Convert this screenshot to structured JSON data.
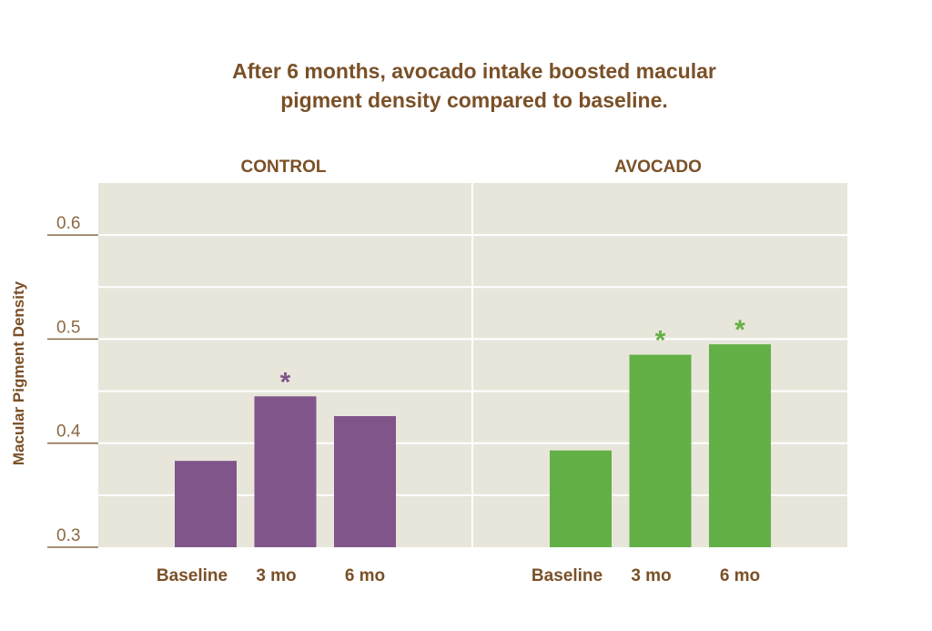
{
  "chart_data": {
    "type": "bar",
    "title": "After 6 months, avocado intake boosted macular pigment density compared to baseline.",
    "title_lines": [
      "After 6 months, avocado intake boosted macular",
      "pigment density compared to baseline."
    ],
    "ylabel": "Macular Pigment Density",
    "xlabel": "",
    "ylim": [
      0.3,
      0.65
    ],
    "yticks": [
      0.3,
      0.4,
      0.5,
      0.6
    ],
    "ytick_labels": [
      "0.3",
      "0.4",
      "0.5",
      "0.6"
    ],
    "grid": true,
    "grid_step": 0.05,
    "categories": [
      "Baseline",
      "3 mo",
      "6 mo"
    ],
    "panels": [
      {
        "name": "CONTROL",
        "color": "#80558a",
        "values": [
          0.383,
          0.445,
          0.426
        ],
        "significant": [
          false,
          true,
          false
        ]
      },
      {
        "name": "AVOCADO",
        "color": "#62b046",
        "values": [
          0.393,
          0.485,
          0.495
        ],
        "significant": [
          false,
          true,
          true
        ]
      }
    ],
    "significance_marker": "*",
    "background_color": "#e8e6da"
  }
}
